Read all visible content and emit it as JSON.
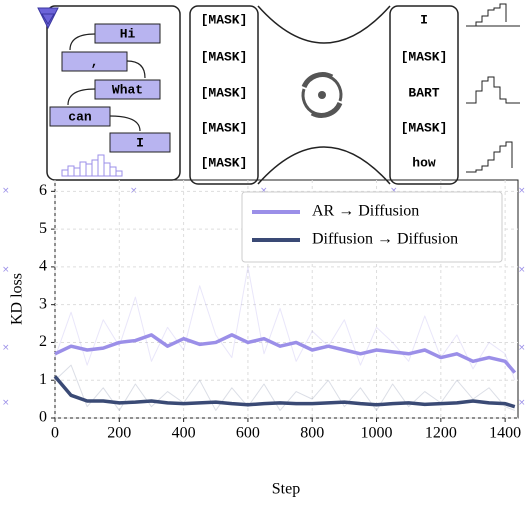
{
  "diagram": {
    "left_tokens": [
      "Hi",
      ",",
      "What",
      "can",
      "I"
    ],
    "masks": [
      "[MASK]",
      "[MASK]",
      "[MASK]",
      "[MASK]",
      "[MASK]"
    ],
    "outputs": [
      "I",
      "[MASK]",
      "BART",
      "[MASK]",
      "how"
    ]
  },
  "chart_data": {
    "type": "line",
    "x_label": "Step",
    "y_label": "KD loss",
    "x": [
      0,
      50,
      100,
      150,
      200,
      250,
      300,
      350,
      400,
      450,
      500,
      550,
      600,
      650,
      700,
      750,
      800,
      850,
      900,
      950,
      1000,
      1050,
      1100,
      1150,
      1200,
      1250,
      1300,
      1350,
      1400,
      1430
    ],
    "series": [
      {
        "color": "rgba(155,143,232,0.22)",
        "values": [
          1.6,
          2.8,
          1.4,
          2.6,
          1.9,
          3.2,
          1.5,
          2.4,
          1.8,
          3.5,
          2.2,
          1.6,
          4.0,
          1.7,
          2.9,
          1.5,
          2.3,
          1.9,
          2.6,
          1.4,
          2.4,
          2.0,
          1.5,
          2.7,
          1.6,
          2.2,
          1.3,
          2.0,
          1.7,
          1.0
        ]
      },
      {
        "color": "rgba(58,74,117,0.18)",
        "values": [
          1.0,
          1.4,
          0.3,
          0.8,
          0.2,
          0.9,
          0.3,
          0.7,
          0.4,
          1.0,
          0.2,
          0.8,
          0.3,
          0.9,
          0.2,
          0.7,
          0.5,
          1.0,
          0.3,
          0.8,
          0.2,
          0.9,
          0.3,
          0.7,
          0.4,
          1.0,
          0.5,
          0.8,
          0.3,
          0.2
        ]
      },
      {
        "name": "AR → Diffusion",
        "color": "#9b8fe8",
        "values": [
          1.7,
          1.9,
          1.8,
          1.85,
          2.0,
          2.05,
          2.2,
          1.9,
          2.1,
          1.95,
          2.0,
          2.2,
          2.0,
          2.1,
          1.9,
          2.0,
          1.8,
          1.9,
          1.8,
          1.7,
          1.8,
          1.75,
          1.7,
          1.8,
          1.6,
          1.7,
          1.5,
          1.6,
          1.5,
          1.2
        ]
      },
      {
        "name": "Diffusion → Diffusion",
        "color": "#3a4a75",
        "values": [
          1.1,
          0.6,
          0.45,
          0.45,
          0.4,
          0.42,
          0.45,
          0.4,
          0.38,
          0.4,
          0.42,
          0.38,
          0.35,
          0.38,
          0.4,
          0.38,
          0.38,
          0.4,
          0.42,
          0.38,
          0.35,
          0.38,
          0.4,
          0.36,
          0.38,
          0.4,
          0.45,
          0.4,
          0.38,
          0.3
        ]
      }
    ],
    "xlim": [
      0,
      1440
    ],
    "ylim": [
      0,
      6.3
    ],
    "xticks": [
      0,
      200,
      400,
      600,
      800,
      1000,
      1200,
      1400
    ],
    "yticks": [
      0,
      1,
      2,
      3,
      4,
      5,
      6
    ],
    "grid": true,
    "legend": "upper right"
  }
}
